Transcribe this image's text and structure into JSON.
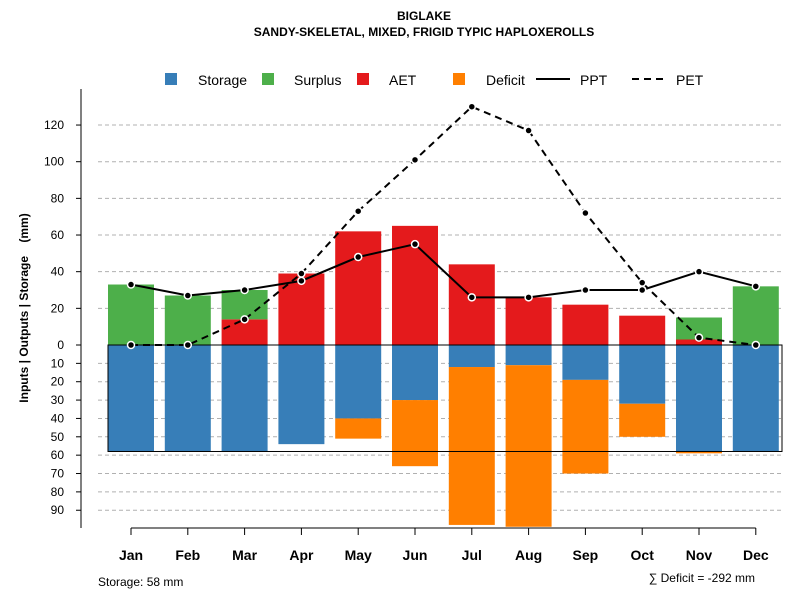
{
  "chart_data": {
    "type": "bar",
    "title": "BIGLAKE",
    "subtitle": "SANDY-SKELETAL, MIXED, FRIGID TYPIC HAPLOXEROLLS",
    "ylabel": "Inputs | Outputs | Storage    (mm)",
    "categories": [
      "Jan",
      "Feb",
      "Mar",
      "Apr",
      "May",
      "Jun",
      "Jul",
      "Aug",
      "Sep",
      "Oct",
      "Nov",
      "Dec"
    ],
    "upper_ticks": [
      "0",
      "20",
      "40",
      "60",
      "80",
      "100",
      "120"
    ],
    "upper_tick_values": [
      0,
      20,
      40,
      60,
      80,
      100,
      120
    ],
    "lower_ticks": [
      "10",
      "20",
      "30",
      "40",
      "50",
      "60",
      "70",
      "80",
      "90"
    ],
    "lower_tick_values": [
      10,
      20,
      30,
      40,
      50,
      60,
      70,
      80,
      90
    ],
    "ylim_upper": [
      0,
      130
    ],
    "ylim_lower": [
      0,
      100
    ],
    "legend": [
      {
        "label": "Storage",
        "kind": "box",
        "color": "#377EB8"
      },
      {
        "label": "Surplus",
        "kind": "box",
        "color": "#4DAF4A"
      },
      {
        "label": "AET",
        "kind": "box",
        "color": "#E41A1C"
      },
      {
        "label": "Deficit",
        "kind": "box",
        "color": "#FF7F00"
      },
      {
        "label": "PPT",
        "kind": "solid"
      },
      {
        "label": "PET",
        "kind": "dashed"
      }
    ],
    "series": [
      {
        "name": "AET",
        "color": "#E41A1C",
        "values": [
          0,
          0,
          14,
          39,
          62,
          65,
          44,
          26,
          22,
          16,
          3,
          0
        ]
      },
      {
        "name": "Surplus",
        "color": "#4DAF4A",
        "values": [
          33,
          27,
          16,
          0,
          0,
          0,
          0,
          0,
          0,
          0,
          12,
          32
        ]
      },
      {
        "name": "Storage",
        "color": "#377EB8",
        "values": [
          58,
          58,
          58,
          54,
          40,
          30,
          12,
          11,
          19,
          32,
          58,
          58
        ]
      },
      {
        "name": "Deficit",
        "color": "#FF7F00",
        "values": [
          0,
          0,
          0,
          0,
          11,
          36,
          86,
          88,
          51,
          18,
          1,
          0
        ]
      },
      {
        "name": "PPT",
        "style": "solid",
        "values": [
          33,
          27,
          30,
          35,
          48,
          55,
          26,
          26,
          30,
          30,
          40,
          32
        ]
      },
      {
        "name": "PET",
        "style": "dashed",
        "values": [
          0,
          0,
          14,
          39,
          73,
          101,
          130,
          117,
          72,
          34,
          4,
          0
        ]
      }
    ],
    "storage_capacity": 58,
    "notes": {
      "storage": "Storage: 58 mm",
      "deficit": "∑ Deficit = -292 mm"
    }
  }
}
